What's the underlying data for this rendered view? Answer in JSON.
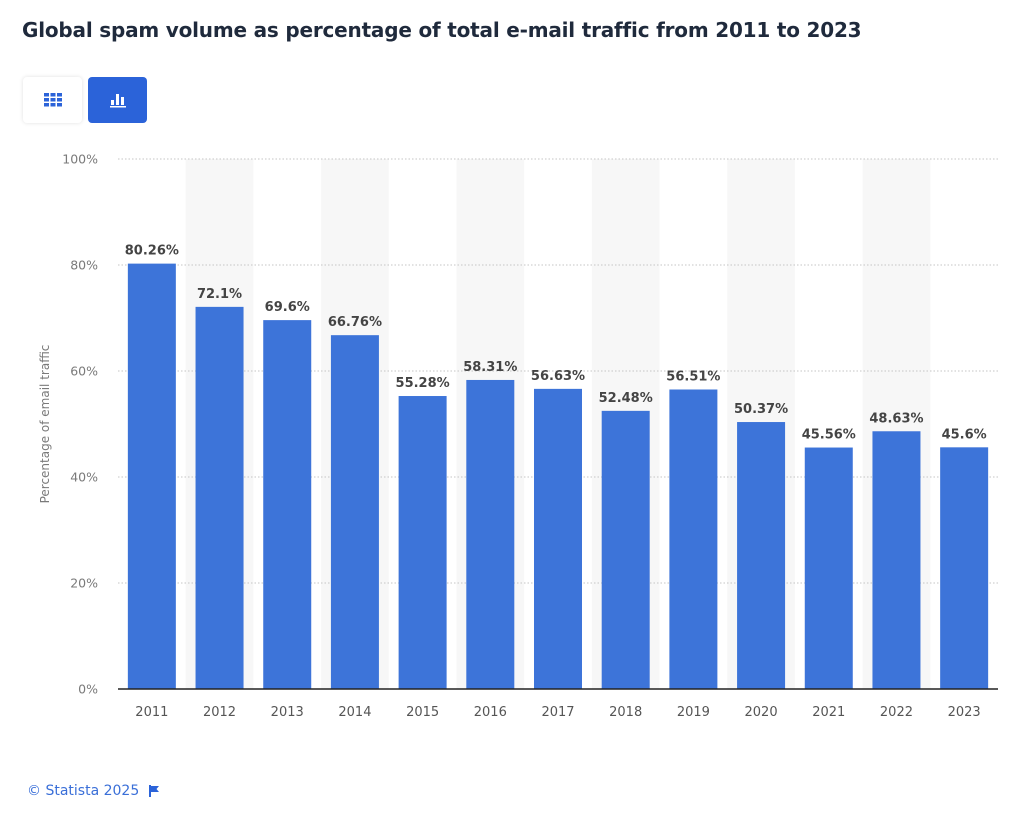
{
  "title": "Global spam volume as percentage of total e-mail traffic from 2011 to 2023",
  "toolbar": {
    "table_view_icon": "grid-icon",
    "chart_view_icon": "bar-chart-icon",
    "active": "chart"
  },
  "footer": {
    "copyright": "© Statista 2025",
    "flag_icon": "flag-icon"
  },
  "colors": {
    "bar": "#3d74d9",
    "accent": "#2b63d9",
    "band": "#f7f7f7"
  },
  "chart_data": {
    "type": "bar",
    "title": "Global spam volume as percentage of total e-mail traffic from 2011 to 2023",
    "xlabel": "",
    "ylabel": "Percentage of email traffic",
    "ylim": [
      0,
      100
    ],
    "yticks": [
      0,
      20,
      40,
      60,
      80,
      100
    ],
    "ytick_labels": [
      "0%",
      "20%",
      "40%",
      "60%",
      "80%",
      "100%"
    ],
    "grid": true,
    "categories": [
      "2011",
      "2012",
      "2013",
      "2014",
      "2015",
      "2016",
      "2017",
      "2018",
      "2019",
      "2020",
      "2021",
      "2022",
      "2023"
    ],
    "values": [
      80.26,
      72.1,
      69.6,
      66.76,
      55.28,
      58.31,
      56.63,
      52.48,
      56.51,
      50.37,
      45.56,
      48.63,
      45.6
    ],
    "data_labels": [
      "80.26%",
      "72.1%",
      "69.6%",
      "66.76%",
      "55.28%",
      "58.31%",
      "56.63%",
      "52.48%",
      "56.51%",
      "50.37%",
      "45.56%",
      "48.63%",
      "45.6%"
    ]
  }
}
